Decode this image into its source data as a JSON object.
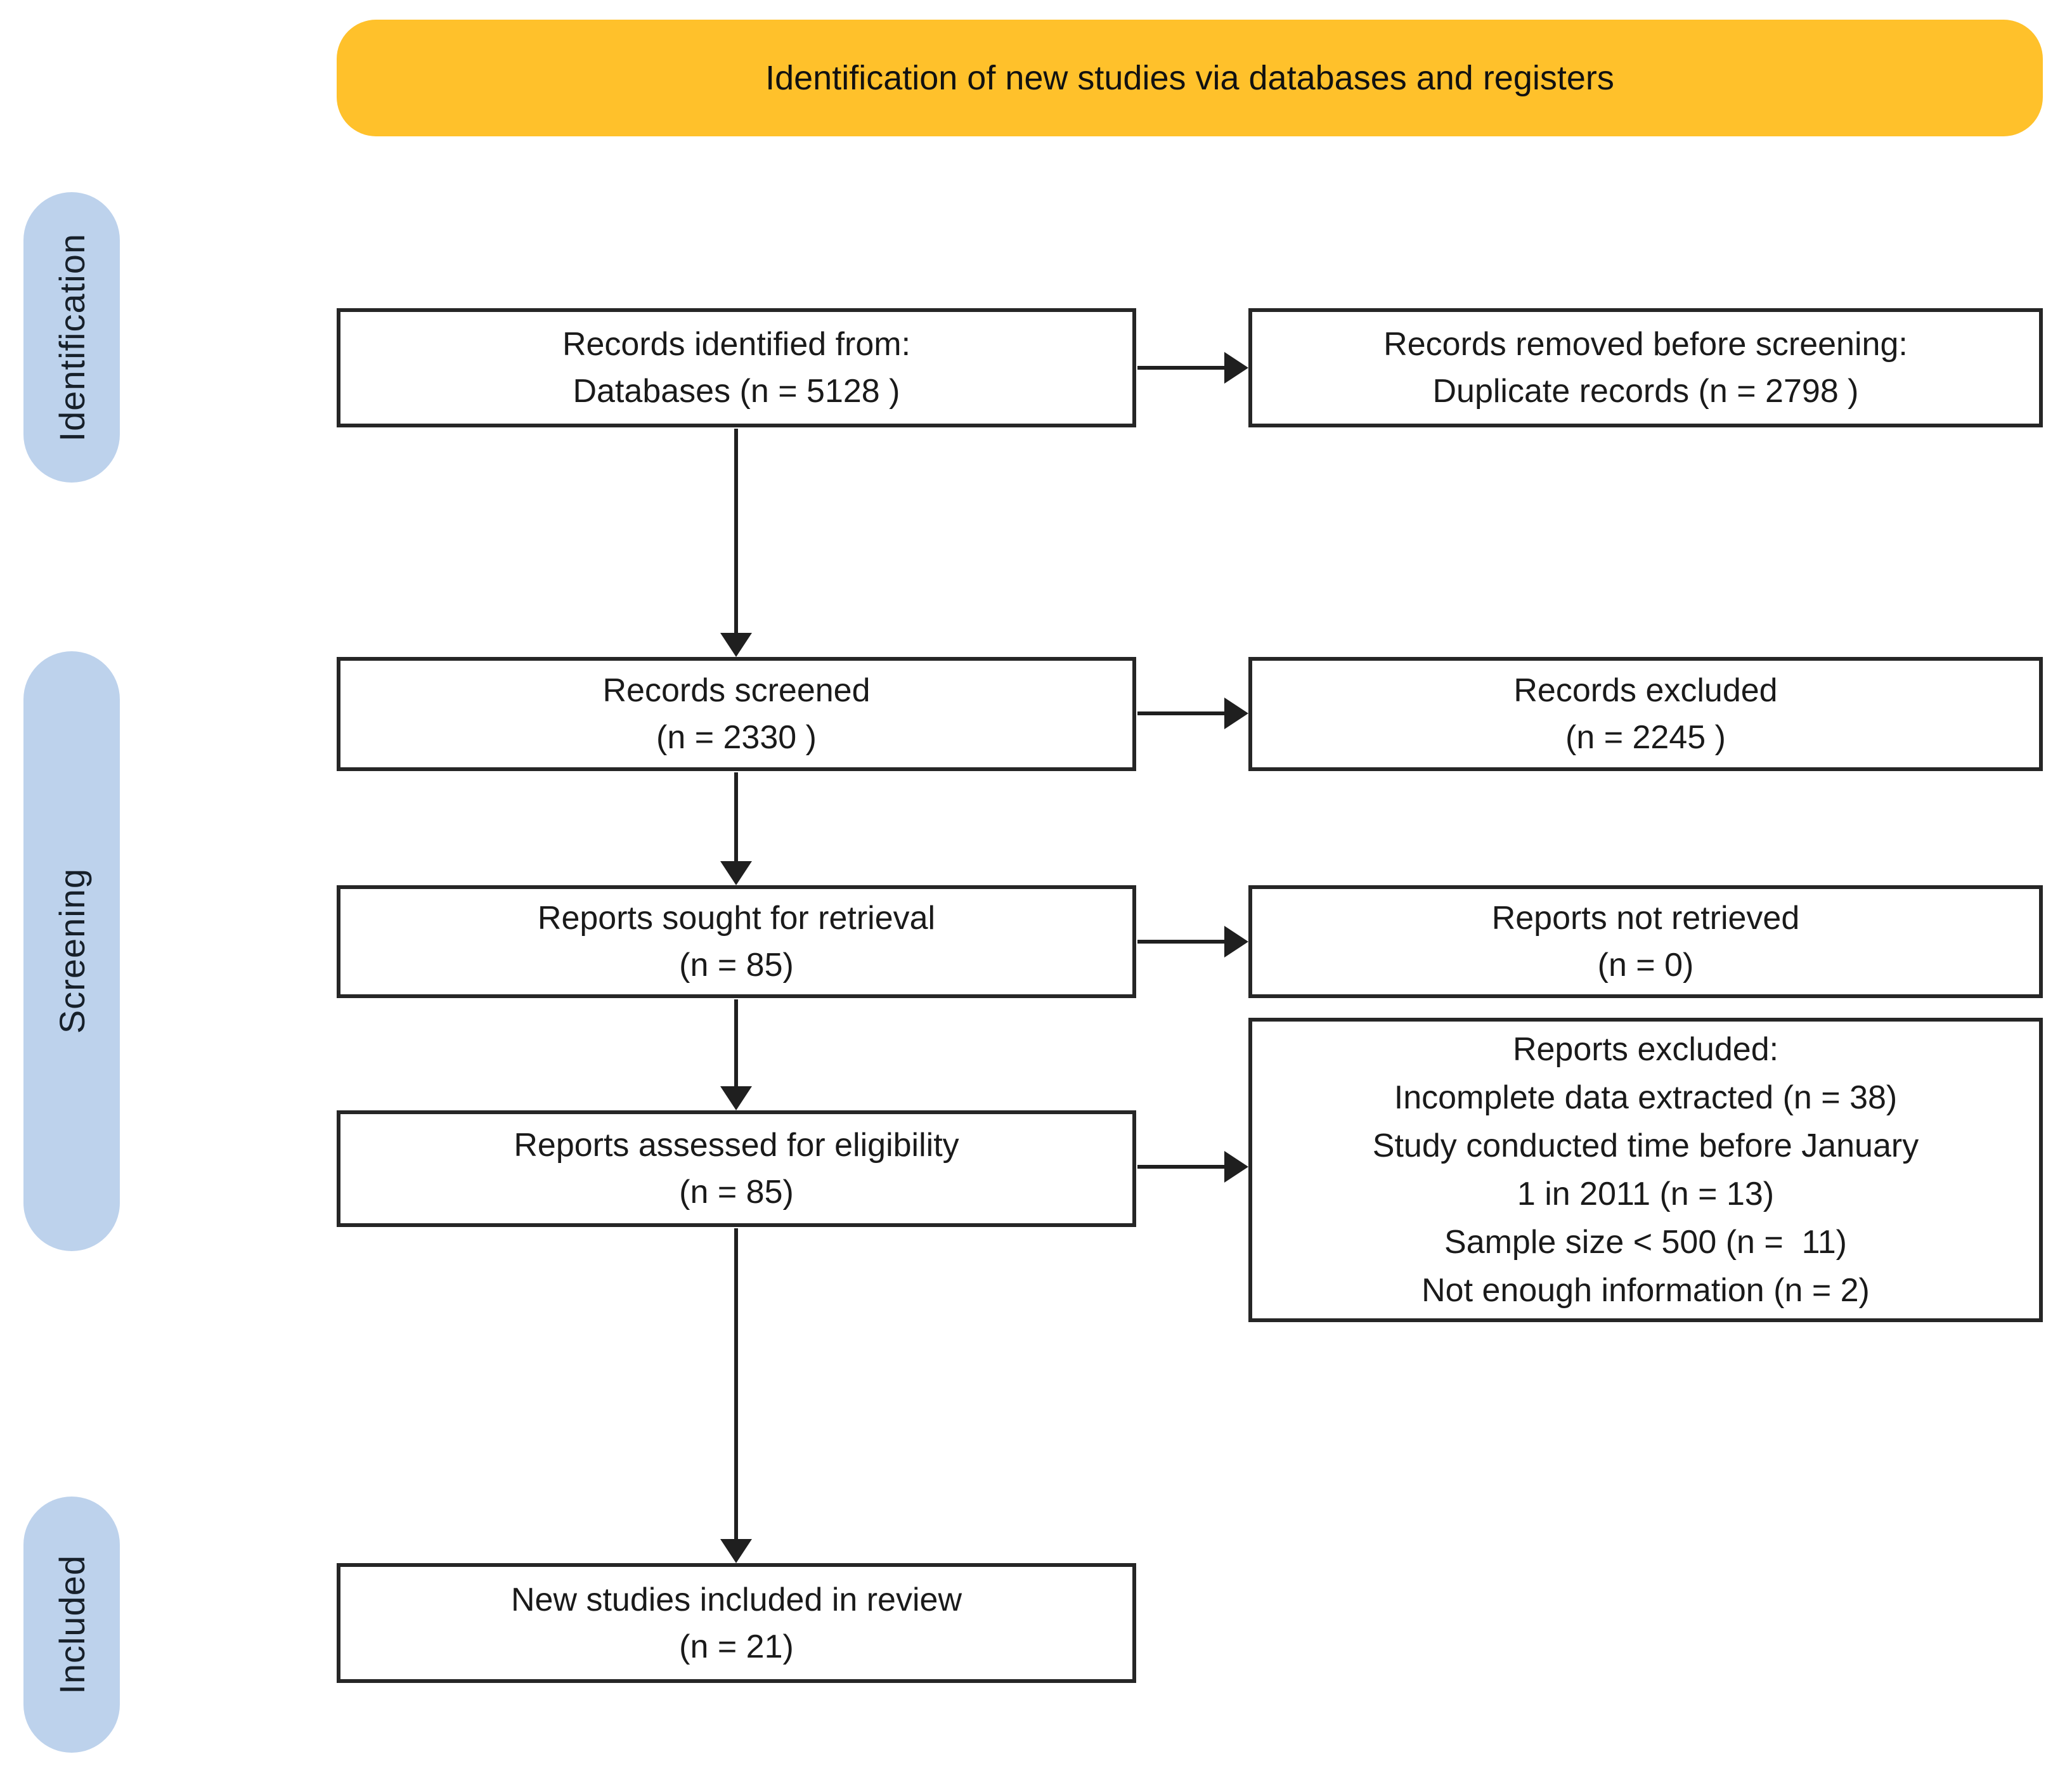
{
  "banner": {
    "label": "Identification of new studies via databases and registers"
  },
  "stages": [
    {
      "label": "Identification"
    },
    {
      "label": "Screening"
    },
    {
      "label": "Included"
    }
  ],
  "flow": {
    "left_column": [
      {
        "name": "records-identified",
        "lines": [
          "Records identified from:",
          "Databases (n = 5128 )"
        ]
      },
      {
        "name": "records-screened",
        "lines": [
          "Records screened",
          "(n = 2330 )"
        ]
      },
      {
        "name": "reports-sought",
        "lines": [
          "Reports sought for retrieval",
          "(n = 85)"
        ]
      },
      {
        "name": "reports-assessed",
        "lines": [
          "Reports assessed for eligibility",
          "(n = 85)"
        ]
      },
      {
        "name": "new-studies-included",
        "lines": [
          "New studies included in review",
          "(n = 21)"
        ]
      }
    ],
    "right_column": [
      {
        "name": "records-removed",
        "lines": [
          "Records removed before screening:",
          "Duplicate records (n = 2798 )"
        ]
      },
      {
        "name": "records-excluded",
        "lines": [
          "Records excluded",
          "(n = 2245 )"
        ]
      },
      {
        "name": "reports-not-retrieved",
        "lines": [
          "Reports not retrieved",
          "(n = 0)"
        ]
      },
      {
        "name": "reports-excluded",
        "lines": [
          "Reports excluded:",
          "Incomplete data extracted (n = 38)",
          "Study conducted time before January",
          "1 in 2011 (n = 13)",
          "Sample size < 500 (n =  11)",
          "Not enough information (n = 2)"
        ]
      }
    ]
  },
  "colors": {
    "banner_bg": "#FFC12B",
    "stage_bg": "#BDD2EC",
    "box_border": "#262626",
    "text": "#1A1A1A",
    "arrow": "#1F1F1F",
    "background": "#FFFFFF"
  }
}
